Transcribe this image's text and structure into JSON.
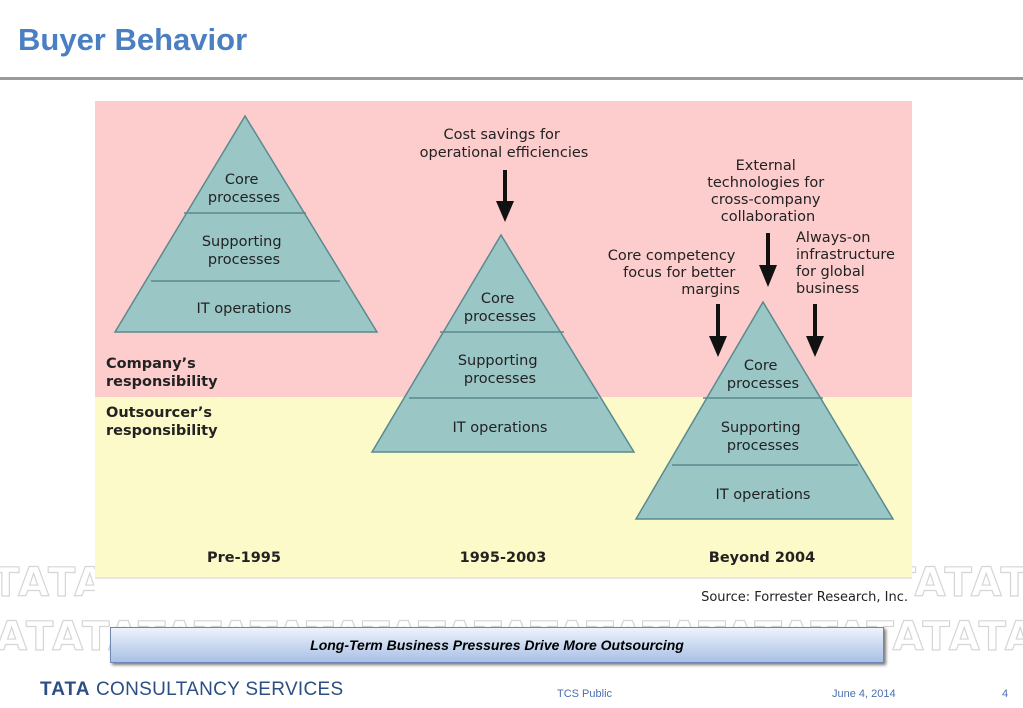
{
  "slide": {
    "title": "Buyer Behavior",
    "caption": "Long-Term Business Pressures Drive More Outsourcing",
    "footer": {
      "logo_mark": "TATA",
      "logo_text": "CONSULTANCY SERVICES",
      "classification": "TCS Public",
      "date": "June 4, 2014",
      "page_number": "4"
    },
    "watermark_text": "TATATATATATATATATATATATATATATATATATATA"
  },
  "diagram": {
    "zone_company": "Company’s",
    "zone_company_2": "responsibility",
    "zone_outsourcer": "Outsourcer’s",
    "zone_outsourcer_2": "responsibility",
    "pyramid_layer_core": [
      "Core",
      "processes"
    ],
    "pyramid_layer_supporting": [
      "Supporting",
      "processes"
    ],
    "pyramid_layer_it": "IT operations",
    "era_pre_1995": "Pre-1995",
    "era_1995_2003": "1995-2003",
    "era_beyond_2004": "Beyond 2004",
    "driver_cost_savings": [
      "Cost savings for",
      "operational efficiencies"
    ],
    "driver_external_tech": [
      "External",
      "technologies for",
      "cross-company",
      "collaboration"
    ],
    "driver_core_competency": [
      "Core competency",
      "focus for better",
      "margins"
    ],
    "driver_always_on": [
      "Always-on",
      "infrastructure",
      "for global",
      "business"
    ],
    "source": "Source: Forrester Research, Inc.",
    "colors": {
      "company_zone": "#fdcdcd",
      "outsourcer_zone": "#fcfac8",
      "pyramid_fill": "#9ac6c6",
      "pyramid_stroke": "#5a8a8f"
    }
  }
}
